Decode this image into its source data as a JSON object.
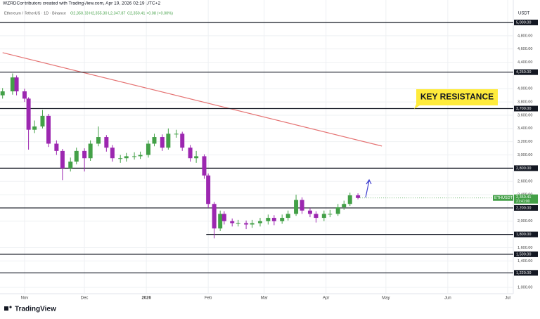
{
  "header": {
    "credit": "WZRDContributors created with TradingView.com, Apr 19, 2026 02:19 UTC+2",
    "symbol": "Ethereum / TetherUS · 1D · Binance",
    "ohlc": [
      "O2,350.33",
      "H2,355.30",
      "L2,347.87",
      "C2,350.41"
    ],
    "change": "+0.08 (+0.00%)"
  },
  "logo": "TradingView",
  "chart_data": {
    "type": "candlestick",
    "currency": "USDT",
    "up_color": "#43a047",
    "down_color": "#9c27b0",
    "grid": true,
    "xlim": [
      -12.3,
      244.8
    ],
    "ylim": [
      905,
      5233
    ],
    "xticks": [
      {
        "value": 0,
        "label": "Nov"
      },
      {
        "value": 30,
        "label": "Dec"
      },
      {
        "value": 61,
        "label": "2026"
      },
      {
        "value": 92,
        "label": "Feb"
      },
      {
        "value": 120,
        "label": "Mar"
      },
      {
        "value": 151,
        "label": "Apr"
      },
      {
        "value": 181,
        "label": "May"
      },
      {
        "value": 212,
        "label": "Jun"
      },
      {
        "value": 242,
        "label": "Jul"
      }
    ],
    "yticks": [
      {
        "value": 4800,
        "label": "4,800.00"
      },
      {
        "value": 4600,
        "label": "4,600.00"
      },
      {
        "value": 4400,
        "label": "4,400.00"
      },
      {
        "value": 4000,
        "label": "4,000.00"
      },
      {
        "value": 3800,
        "label": "3,800.00"
      },
      {
        "value": 3600,
        "label": "3,600.00"
      },
      {
        "value": 3400,
        "label": "3,400.00"
      },
      {
        "value": 3200,
        "label": "3,200.00"
      },
      {
        "value": 3000,
        "label": "3,000.00"
      },
      {
        "value": 2600,
        "label": "2,600.00"
      },
      {
        "value": 2400,
        "label": "2,400.00"
      },
      {
        "value": 2000,
        "label": "2,000.00"
      },
      {
        "value": 1600,
        "label": "1,600.00"
      },
      {
        "value": 1400,
        "label": "1,400.00"
      },
      {
        "value": 1000,
        "label": "1,000.00"
      }
    ],
    "levels": [
      {
        "value": 5000,
        "label": "5,000.00"
      },
      {
        "value": 4250,
        "label": "4,250.00"
      },
      {
        "value": 3700,
        "label": "3,700.00"
      },
      {
        "value": 2800,
        "label": "2,800.00"
      },
      {
        "value": 2200,
        "label": "2,200.00"
      },
      {
        "value": 1800,
        "label": "1,800.00",
        "start": 91
      },
      {
        "value": 1500,
        "label": "1,500.00"
      },
      {
        "value": 1220,
        "label": "1,220.00"
      }
    ],
    "trendline": {
      "x": [
        -11,
        179
      ],
      "y": [
        4544,
        3134
      ],
      "color": "#e57373"
    },
    "annotation": "KEY RESISTANCE",
    "last_price": {
      "symbol": "ETHUSDT",
      "value": 2350.41,
      "label": "2,350.41",
      "countdown": "21:41:00"
    },
    "x": [
      -11,
      -6,
      -4,
      0,
      2,
      5,
      9,
      12,
      16,
      19,
      23,
      26,
      30,
      33,
      37,
      41,
      44,
      48,
      51,
      55,
      58,
      62,
      65,
      69,
      72,
      76,
      79,
      83,
      86,
      90,
      92,
      95,
      98,
      100,
      104,
      107,
      111,
      114,
      118,
      122,
      125,
      129,
      132,
      136,
      139,
      143,
      146,
      150,
      153,
      157,
      160,
      163,
      167
    ],
    "open": [
      3900,
      3960,
      4170,
      3960,
      3850,
      3380,
      3430,
      3590,
      3170,
      3060,
      2800,
      2900,
      3060,
      2950,
      3170,
      3270,
      3110,
      2950,
      2950,
      2980,
      2980,
      3000,
      3170,
      3270,
      3110,
      3320,
      3320,
      3110,
      2950,
      2980,
      2690,
      2260,
      1890,
      2110,
      2000,
      1970,
      1970,
      1950,
      1970,
      2000,
      2050,
      2000,
      2050,
      2110,
      2320,
      2160,
      2110,
      2050,
      2110,
      2110,
      2210,
      2260,
      2390
    ],
    "high": [
      4010,
      4230,
      4200,
      4000,
      3870,
      3520,
      3680,
      3620,
      3220,
      3090,
      2960,
      3110,
      3100,
      3220,
      3430,
      3300,
      3150,
      3000,
      3030,
      3040,
      3050,
      3220,
      3320,
      3310,
      3400,
      3380,
      3350,
      3150,
      3060,
      3010,
      2720,
      2290,
      2160,
      2150,
      2040,
      2020,
      2010,
      2020,
      2050,
      2100,
      2090,
      2100,
      2160,
      2400,
      2360,
      2200,
      2150,
      2160,
      2170,
      2260,
      2310,
      2430,
      2420
    ],
    "low": [
      3850,
      3910,
      3900,
      3800,
      3080,
      3330,
      3400,
      3120,
      3000,
      2620,
      2750,
      2860,
      2750,
      2910,
      3130,
      3050,
      2900,
      2880,
      2900,
      2930,
      2940,
      2960,
      3130,
      3060,
      3080,
      3260,
      3060,
      2900,
      2880,
      2640,
      2200,
      1740,
      1850,
      1950,
      1920,
      1920,
      1880,
      1900,
      1920,
      1950,
      1940,
      1960,
      2010,
      2080,
      2110,
      2060,
      1980,
      2000,
      2060,
      2080,
      2170,
      2230,
      2330
    ],
    "close": [
      3960,
      4170,
      3960,
      3850,
      3380,
      3430,
      3590,
      3170,
      3060,
      2800,
      2900,
      3060,
      2950,
      3170,
      3270,
      3110,
      2950,
      2950,
      2980,
      2980,
      3000,
      3170,
      3270,
      3110,
      3320,
      3320,
      3110,
      2950,
      2980,
      2690,
      2260,
      1890,
      2110,
      2000,
      1970,
      1970,
      1950,
      1970,
      2000,
      2050,
      2000,
      2050,
      2110,
      2320,
      2160,
      2110,
      2050,
      2110,
      2110,
      2210,
      2260,
      2390,
      2350
    ]
  }
}
